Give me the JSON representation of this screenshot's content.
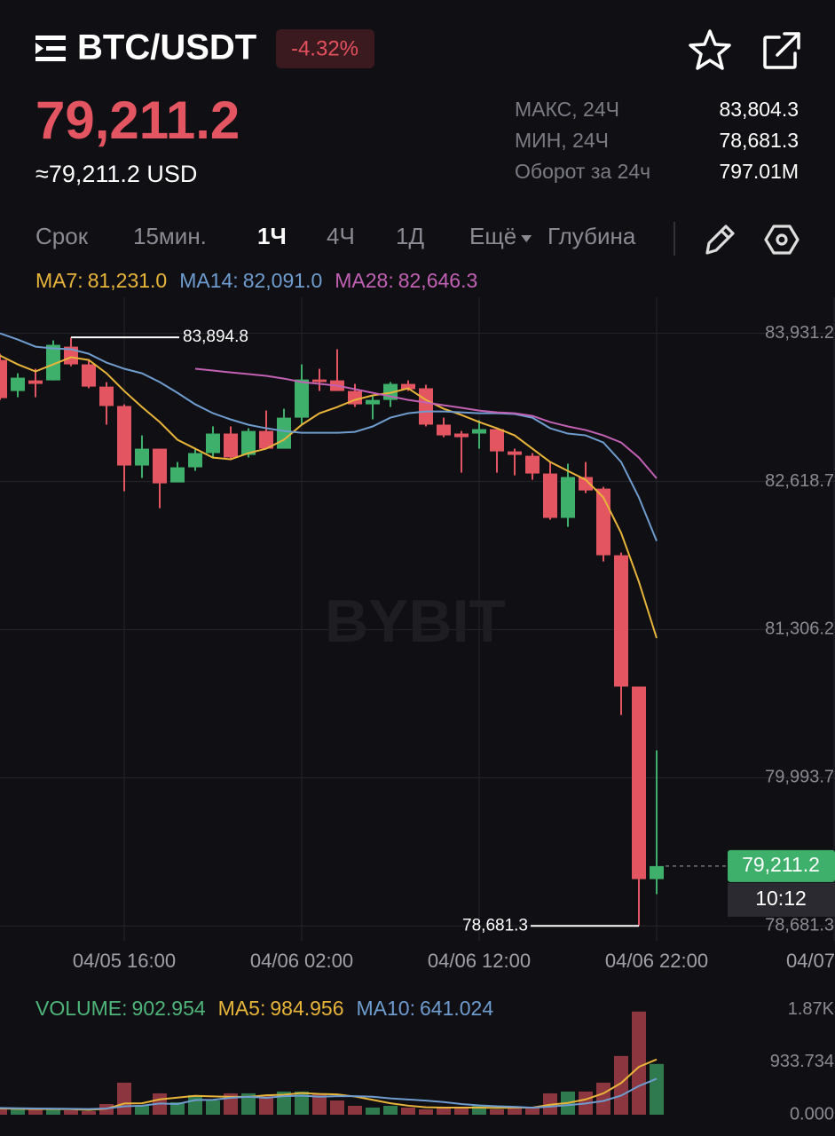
{
  "header": {
    "pair": "BTC/USDT",
    "change": "-4.32%",
    "price": "79,211.2",
    "price_usd": "≈79,211.2 USD",
    "stats": [
      {
        "label": "МАКС, 24Ч",
        "value": "83,804.3"
      },
      {
        "label": "МИН, 24Ч",
        "value": "78,681.3"
      },
      {
        "label": "Оборот за 24ч",
        "value": "797.01M"
      }
    ],
    "tabs": [
      "Срок",
      "15мин.",
      "1Ч",
      "4Ч",
      "1Д",
      "Ещё",
      "Глубина"
    ]
  },
  "chart_data": [
    {
      "type": "candlestick",
      "watermark": "BYBIT",
      "up_color": "#3fb06b",
      "down_color": "#e35561",
      "grid": true,
      "categories": [
        null,
        null,
        null,
        null,
        null,
        null,
        null,
        "04/05 16:00",
        null,
        null,
        null,
        null,
        null,
        null,
        null,
        null,
        null,
        "04/06 02:00",
        null,
        null,
        null,
        null,
        null,
        null,
        null,
        null,
        null,
        "04/06 12:00",
        null,
        null,
        null,
        null,
        null,
        null,
        null,
        null,
        null,
        "04/06 22:00",
        null,
        null,
        null,
        null,
        null,
        null,
        null,
        null,
        null,
        "04/07"
      ],
      "open": [
        83695,
        83420,
        83514,
        83514,
        83813,
        83656,
        83459,
        83287,
        82760,
        82909,
        82610,
        82744,
        82870,
        83043,
        82854,
        83066,
        82909,
        83184,
        83522,
        83514,
        83420,
        83302,
        83341,
        83483,
        83444,
        83122,
        83043,
        83043,
        83082,
        82885,
        82846,
        82689,
        82296,
        82658,
        82555,
        81965,
        80802,
        79096,
        null,
        null,
        null,
        null,
        null,
        null,
        null,
        null,
        null,
        null
      ],
      "high": [
        83750,
        83577,
        83617,
        83868,
        83894.8,
        83695,
        83499,
        83302,
        83027,
        82909,
        82791,
        82909,
        83106,
        83106,
        83090,
        83247,
        83263,
        83656,
        83617,
        83790,
        83483,
        83381,
        83499,
        83514,
        83475,
        83184,
        83066,
        83161,
        83082,
        82909,
        82870,
        82791,
        82776,
        82791,
        82571,
        81989,
        80802,
        80236,
        null,
        null,
        null,
        null,
        null,
        null,
        null,
        null,
        null,
        null
      ],
      "low": [
        83341,
        83365,
        83365,
        83514,
        83640,
        83444,
        83122,
        82532,
        82650,
        82382,
        82610,
        82713,
        82831,
        82807,
        82831,
        82909,
        82909,
        83122,
        83420,
        83420,
        83279,
        83169,
        83279,
        83420,
        83106,
        83011,
        82697,
        82909,
        82697,
        82673,
        82634,
        82280,
        82217,
        82516,
        81910,
        80550,
        78681.3,
        78963,
        null,
        null,
        null,
        null,
        null,
        null,
        null,
        null,
        null,
        null
      ],
      "close": [
        83357,
        83538,
        83483,
        83829,
        83656,
        83459,
        83287,
        82760,
        82909,
        82602,
        82744,
        82870,
        83043,
        82831,
        83066,
        82909,
        83184,
        83522,
        83499,
        83420,
        83302,
        83341,
        83483,
        83436,
        83122,
        83027,
        83011,
        83082,
        82885,
        82854,
        82689,
        82296,
        82658,
        82539,
        81965,
        80802,
        79096,
        79211.2,
        null,
        null,
        null,
        null,
        null,
        null,
        null,
        null,
        null,
        null
      ],
      "series": [
        {
          "name": "MA7:",
          "color": "#e8b43a",
          "value_label": "81,231.0",
          "values": [
            83734,
            83656,
            83593,
            83656,
            83719,
            83695,
            83577,
            83420,
            83278,
            83145,
            82988,
            82909,
            82830,
            82815,
            82870,
            82909,
            82988,
            83121,
            83223,
            83278,
            83341,
            83381,
            83404,
            83444,
            83341,
            83263,
            83208,
            83145,
            83090,
            83027,
            82909,
            82791,
            82712,
            82634,
            82477,
            82162,
            81730,
            81231.0,
            null,
            null,
            null,
            null,
            null,
            null,
            null,
            null,
            null,
            null
          ]
        },
        {
          "name": "MA14:",
          "color": "#6f9ccf",
          "value_label": "82,091.0",
          "values": [
            83931,
            83876,
            83813,
            83797,
            83790,
            83750,
            83672,
            83617,
            83577,
            83499,
            83404,
            83302,
            83223,
            83168,
            83121,
            83090,
            83066,
            83050,
            83050,
            83050,
            83058,
            83106,
            83184,
            83223,
            83239,
            83239,
            83231,
            83223,
            83223,
            83216,
            83184,
            83090,
            83043,
            83027,
            82964,
            82791,
            82477,
            82091.0,
            null,
            null,
            null,
            null,
            null,
            null,
            null,
            null,
            null,
            null
          ]
        },
        {
          "name": "MA28:",
          "color": "#c261b4",
          "value_label": "82,646.3",
          "values": [
            null,
            null,
            null,
            null,
            null,
            null,
            null,
            null,
            null,
            null,
            null,
            83617,
            83601,
            83585,
            83570,
            83554,
            83530,
            83499,
            83483,
            83467,
            83436,
            83404,
            83373,
            83341,
            83318,
            83294,
            83271,
            83247,
            83231,
            83223,
            83200,
            83145,
            83106,
            83074,
            83027,
            82964,
            82830,
            82646.3,
            null,
            null,
            null,
            null,
            null,
            null,
            null,
            null,
            null,
            null
          ]
        }
      ],
      "annotations": [
        {
          "value": 83894.8,
          "label": "83,894.8"
        },
        {
          "value": 78681.3,
          "label": "78,681.3"
        }
      ],
      "last_price": {
        "value": 79211.2,
        "label": "79,211.2",
        "countdown": "10:12"
      },
      "ylim": [
        78550,
        84250
      ],
      "yticks": [
        {
          "value": 83931.2,
          "label": "83,931.2"
        },
        {
          "value": 82618.7,
          "label": "82,618.7"
        },
        {
          "value": 81306.2,
          "label": "81,306.2"
        },
        {
          "value": 79993.7,
          "label": "79,993.7"
        },
        {
          "value": 78681.3,
          "label": "78,681.3"
        }
      ]
    },
    {
      "type": "bar",
      "series": [
        {
          "name": "VOLUME:",
          "color": "#4fb479",
          "value_label": "902.954",
          "values": [
            127,
            95,
            95,
            95,
            79,
            63,
            190,
            570,
            158,
            380,
            222,
            348,
            253,
            380,
            380,
            348,
            412,
            412,
            380,
            253,
            158,
            127,
            158,
            127,
            95,
            127,
            127,
            158,
            95,
            127,
            127,
            380,
            412,
            412,
            570,
            1045,
            1836,
            902.954,
            null,
            null,
            null,
            null,
            null,
            null,
            null,
            null,
            null,
            null
          ]
        },
        {
          "name": "MA5:",
          "color": "#e8b43a",
          "value_label": "984.956",
          "values": [
            110,
            105,
            100,
            100,
            98,
            85,
            106,
            199,
            203,
            272,
            304,
            336,
            326,
            317,
            317,
            346,
            355,
            386,
            370,
            361,
            323,
            265,
            203,
            161,
            133,
            127,
            127,
            127,
            121,
            127,
            127,
            177,
            210,
            272,
            380,
            564,
            851,
            984.956,
            null,
            null,
            null,
            null,
            null,
            null,
            null,
            null,
            null,
            null
          ]
        },
        {
          "name": "MA10:",
          "color": "#6f9ccf",
          "value_label": "641.024",
          "values": [
            120,
            115,
            110,
            108,
            105,
            100,
            110,
            150,
            160,
            200,
            190,
            260,
            265,
            300,
            320,
            300,
            330,
            340,
            320,
            330,
            330,
            320,
            290,
            270,
            250,
            225,
            190,
            165,
            150,
            140,
            125,
            145,
            170,
            200,
            245,
            340,
            511,
            641.024,
            null,
            null,
            null,
            null,
            null,
            null,
            null,
            null,
            null,
            null
          ]
        }
      ],
      "ylim": [
        0,
        1880
      ],
      "yticks": [
        {
          "value": 1867.468,
          "label": "1.87K"
        },
        {
          "value": 933.734,
          "label": "933.734"
        },
        {
          "value": 0,
          "label": "0.000"
        }
      ]
    }
  ]
}
